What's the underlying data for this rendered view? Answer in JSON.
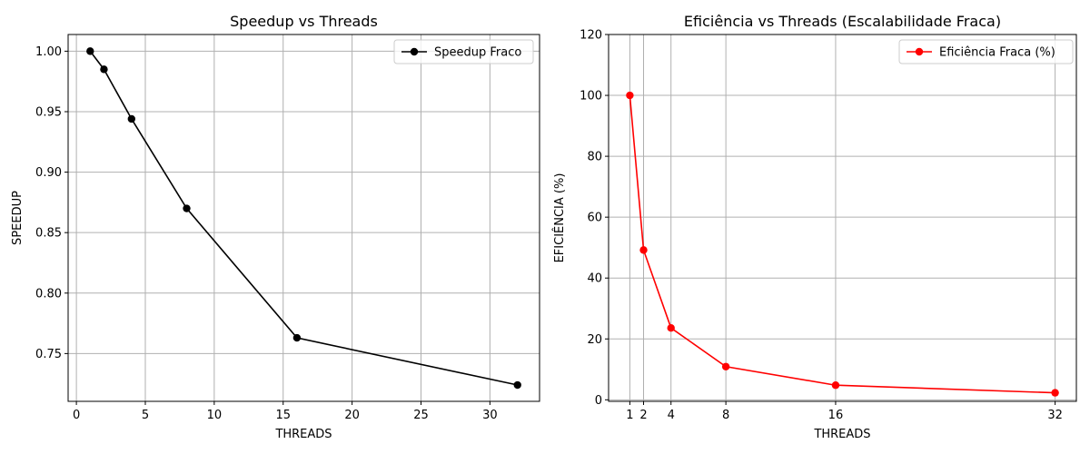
{
  "chart_data": [
    {
      "type": "line",
      "title": "Speedup vs Threads",
      "xlabel": "THREADS",
      "ylabel": "SPEEDUP",
      "x": [
        1,
        2,
        4,
        8,
        16,
        32
      ],
      "xlim": [
        -0.6,
        33.6
      ],
      "ylim": [
        0.7105,
        1.0138
      ],
      "xticks": [
        0,
        5,
        10,
        15,
        20,
        25,
        30
      ],
      "yticks": [
        0.75,
        0.8,
        0.85,
        0.9,
        0.95,
        1.0
      ],
      "ytick_decimals": 2,
      "grid": true,
      "legend_position": "top-right",
      "series": [
        {
          "name": "Speedup Fraco",
          "values": [
            1.0,
            0.985,
            0.944,
            0.87,
            0.763,
            0.724
          ],
          "color": "#000000",
          "marker": "circle"
        }
      ]
    },
    {
      "type": "line",
      "title": "Eficiência vs Threads (Escalabilidade Fraca)",
      "xlabel": "THREADS",
      "ylabel": "EFICIÊNCIA (%)",
      "x": [
        1,
        2,
        4,
        8,
        16,
        32
      ],
      "xlim": [
        -0.55,
        33.55
      ],
      "ylim": [
        -0.5,
        120
      ],
      "xticks": [
        1,
        2,
        4,
        8,
        16,
        32
      ],
      "yticks": [
        0,
        20,
        40,
        60,
        80,
        100,
        120
      ],
      "ytick_decimals": 0,
      "grid": true,
      "legend_position": "top-right",
      "series": [
        {
          "name": "Eficiência Fraca (%)",
          "values": [
            100.0,
            49.2,
            23.6,
            10.9,
            4.8,
            2.3
          ],
          "color": "#ff0000",
          "marker": "circle"
        }
      ]
    }
  ]
}
